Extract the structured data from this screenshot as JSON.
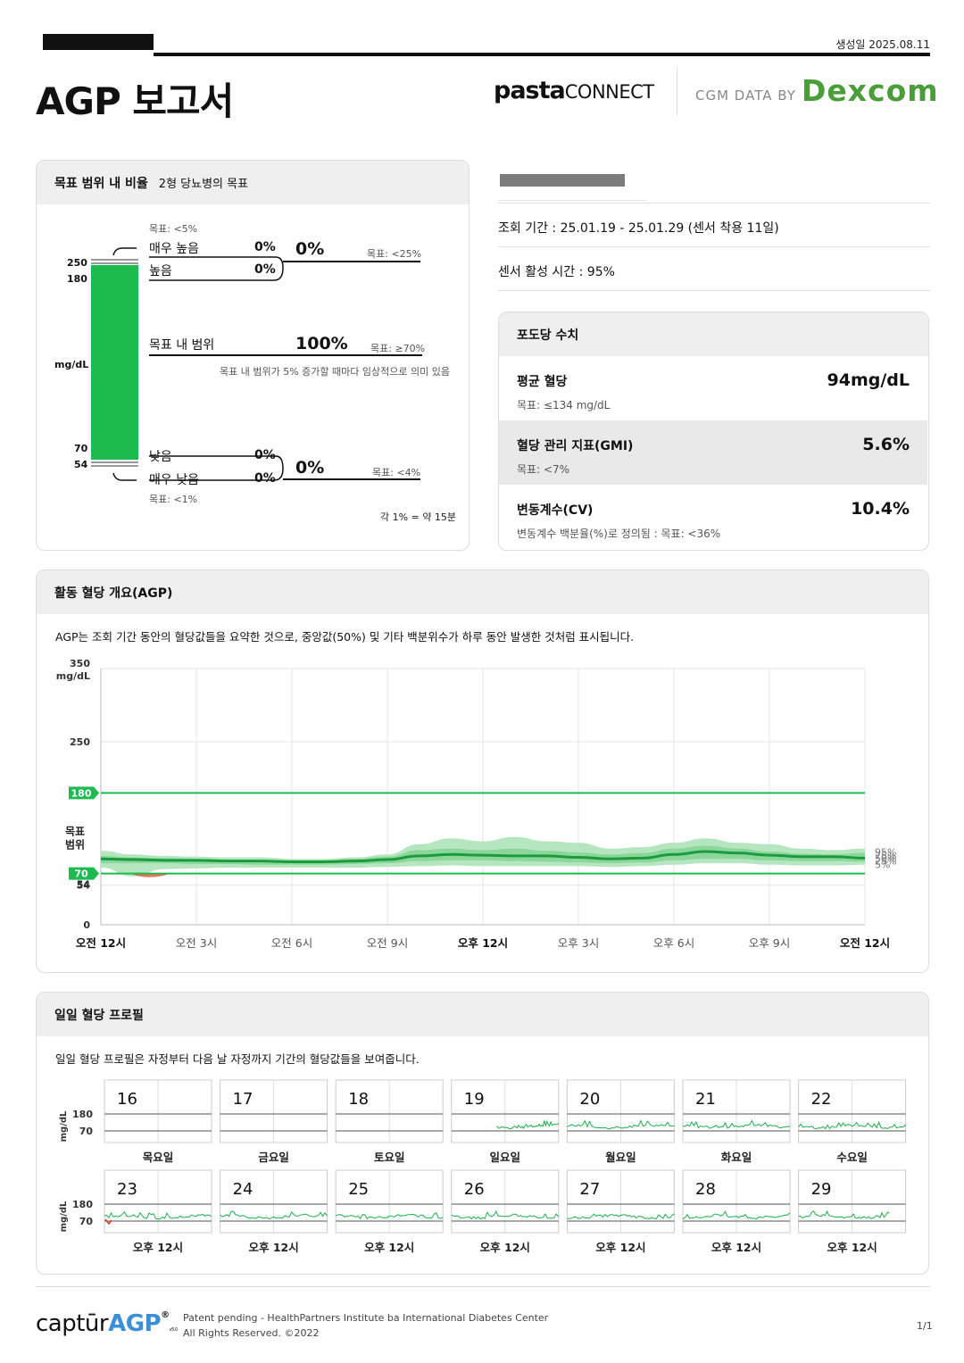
{
  "header": {
    "generated_date": "생성일 2025.08.11",
    "title": "AGP 보고서",
    "pasta_brand": "pasta",
    "pasta_connect": "CONNECT",
    "cgm_data_by": "CGM DATA BY",
    "dexcom": "Dexcom"
  },
  "tir": {
    "title": "목표 범위 내 비율",
    "subtitle": "2형 당뇨병의 목표",
    "unit": "mg/dL",
    "thresholds": [
      "250",
      "180",
      "70",
      "54"
    ],
    "very_high_goal": "목표: <5%",
    "very_high_label": "매우 높음",
    "very_high_value": "0%",
    "high_label": "높음",
    "high_value": "0%",
    "high_total": "0%",
    "high_total_goal": "목표: <25%",
    "in_range_label": "목표 내 범위",
    "in_range_value": "100%",
    "in_range_goal": "목표: ≥70%",
    "in_range_note": "목표 내 범위가 5% 증가할 때마다 임상적으로 의미 있음",
    "low_label": "낮음",
    "low_value": "0%",
    "very_low_label": "매우 낮음",
    "very_low_value": "0%",
    "low_total": "0%",
    "low_total_goal": "목표: <4%",
    "very_low_goal": "목표: <1%",
    "footnote": "각 1% = 약 15분"
  },
  "info": {
    "period": "조회 기간 : 25.01.19 - 25.01.29 (센서 착용 11일)",
    "sensor_active": "센서 활성 시간 : 95%"
  },
  "glucose": {
    "title": "포도당 수치",
    "avg_label": "평균 혈당",
    "avg_value": "94mg/dL",
    "avg_goal": "목표: ≤134 mg/dL",
    "gmi_label": "혈당 관리 지표(GMI)",
    "gmi_value": "5.6%",
    "gmi_goal": "목표: <7%",
    "cv_label": "변동계수(CV)",
    "cv_value": "10.4%",
    "cv_goal": "변동계수 백분율(%)로 정의됨 : 목표: <36%"
  },
  "agp": {
    "title": "활동 혈당 개요(AGP)",
    "description": "AGP는 조회 기간 동안의 혈당값들을 요약한 것으로, 중앙값(50%) 및 기타 백분위수가 하루 동안 발생한 것처럼 표시됩니다.",
    "target_label_1": "목표",
    "target_label_2": "범위",
    "unit": "mg/dL"
  },
  "chart_data": {
    "type": "area",
    "title": "활동 혈당 개요(AGP)",
    "xlabel": "",
    "ylabel": "mg/dL",
    "ylim": [
      0,
      350
    ],
    "y_ticks": [
      "0",
      "54",
      "70",
      "180",
      "250",
      "350"
    ],
    "x_ticks": [
      "오전 12시",
      "오전 3시",
      "오전 6시",
      "오전 9시",
      "오후 12시",
      "오후 3시",
      "오후 6시",
      "오후 9시",
      "오전 12시"
    ],
    "x_hours": [
      0,
      1,
      2,
      3,
      4,
      5,
      6,
      7,
      8,
      9,
      10,
      11,
      12,
      13,
      14,
      15,
      16,
      17,
      18,
      19,
      20,
      21,
      22,
      23,
      24
    ],
    "target_range": [
      70,
      180
    ],
    "series": [
      {
        "name": "95%",
        "values": [
          101,
          96,
          94,
          93,
          92,
          92,
          90,
          90,
          92,
          96,
          110,
          118,
          114,
          120,
          114,
          112,
          104,
          106,
          112,
          118,
          112,
          110,
          104,
          102,
          104
        ]
      },
      {
        "name": "75%",
        "values": [
          94,
          92,
          91,
          90,
          89,
          88,
          88,
          88,
          90,
          93,
          102,
          104,
          102,
          104,
          101,
          99,
          96,
          98,
          104,
          108,
          104,
          100,
          97,
          96,
          98
        ]
      },
      {
        "name": "50%",
        "values": [
          90,
          89,
          88,
          88,
          87,
          87,
          86,
          86,
          87,
          89,
          94,
          96,
          95,
          94,
          94,
          92,
          90,
          91,
          96,
          100,
          98,
          95,
          93,
          93,
          91
        ]
      },
      {
        "name": "25%",
        "values": [
          84,
          84,
          84,
          83,
          83,
          82,
          82,
          82,
          83,
          84,
          87,
          88,
          88,
          87,
          86,
          85,
          84,
          85,
          88,
          90,
          90,
          88,
          87,
          87,
          86
        ]
      },
      {
        "name": "5%",
        "values": [
          78,
          66,
          76,
          77,
          78,
          78,
          78,
          78,
          78,
          79,
          80,
          81,
          80,
          80,
          80,
          80,
          79,
          80,
          82,
          84,
          84,
          82,
          81,
          81,
          82
        ]
      }
    ],
    "percentile_labels": [
      "95%",
      "75%",
      "50%",
      "25%",
      "5%"
    ]
  },
  "daily": {
    "title": "일일 혈당 프로필",
    "description": "일일 혈당 프로필은 자정부터 다음 날 자정까지 기간의 혈당값들을 보여줍니다.",
    "unit": "mg/dL",
    "y_labels": [
      "180",
      "70"
    ],
    "week1": {
      "days": [
        "16",
        "17",
        "18",
        "19",
        "20",
        "21",
        "22"
      ],
      "labels": [
        "목요일",
        "금요일",
        "토요일",
        "일요일",
        "월요일",
        "화요일",
        "수요일"
      ]
    },
    "week2": {
      "days": [
        "23",
        "24",
        "25",
        "26",
        "27",
        "28",
        "29"
      ],
      "labels": [
        "오후 12시",
        "오후 12시",
        "오후 12시",
        "오후 12시",
        "오후 12시",
        "오후 12시",
        "오후 12시"
      ]
    }
  },
  "footer": {
    "logo_captur": "captūr",
    "logo_agp": "AGP",
    "logo_reg": "®",
    "logo_ver": "v5.0",
    "patent": "Patent pending - HealthPartners Institute ba International Diabetes Center",
    "rights": "All Rights Reserved. ©2022",
    "page": "1/1"
  },
  "colors": {
    "in_range_green": "#1dbb4f",
    "line_green": "#1a9c3e",
    "band_outer": "#b6e6c0",
    "band_inner": "#7fd08f",
    "low_red": "#e05a3a",
    "dexcom_green": "#4a9e3a"
  }
}
